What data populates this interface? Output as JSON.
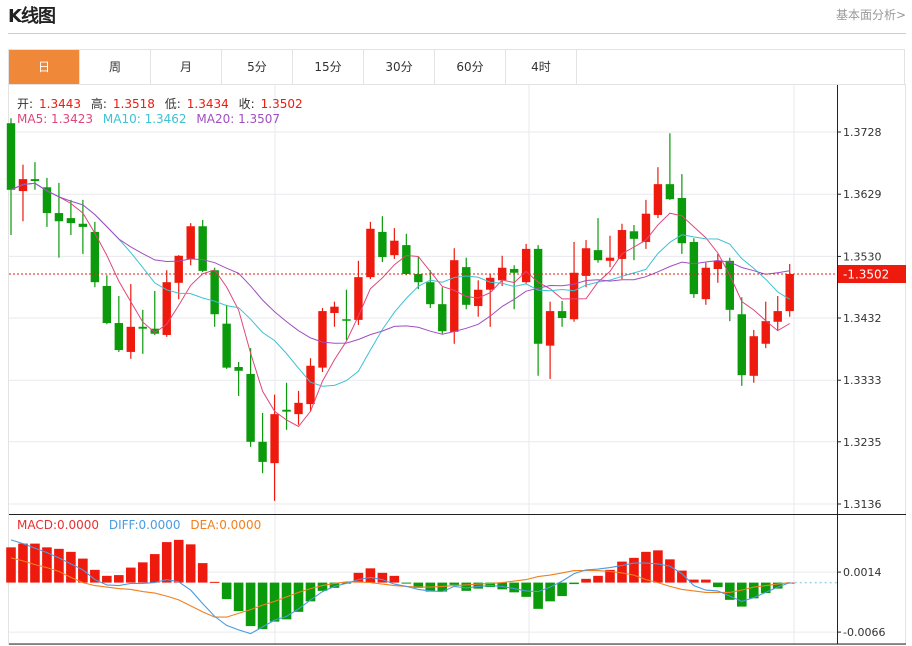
{
  "header": {
    "title": "K线图",
    "link": "基本面分析>"
  },
  "tabs": [
    {
      "label": "日",
      "active": true
    },
    {
      "label": "周"
    },
    {
      "label": "月"
    },
    {
      "label": "5分"
    },
    {
      "label": "15分"
    },
    {
      "label": "30分"
    },
    {
      "label": "60分"
    },
    {
      "label": "4时"
    }
  ],
  "ohlc_legend": {
    "open_label": "开:",
    "open": "1.3443",
    "high_label": "高:",
    "high": "1.3518",
    "low_label": "低:",
    "low": "1.3434",
    "close_label": "收:",
    "close": "1.3502"
  },
  "ma_legend": {
    "ma5": "MA5: 1.3423",
    "ma10": "MA10: 1.3462",
    "ma20": "MA20: 1.3507"
  },
  "macd_legend": {
    "macd": "MACD:0.0000",
    "diff": "DIFF:0.0000",
    "dea": "DEA:0.0000"
  },
  "colors": {
    "up": "#EE1A0E",
    "down": "#0B9A0B",
    "active_tab": "#F0883A",
    "ma5": "#E0467C",
    "ma10": "#3EC1D3",
    "ma20": "#A04FC0",
    "diff": "#4A9BE0",
    "dea": "#F08020",
    "last_price": "#EE1A0E"
  },
  "chart_data": [
    {
      "type": "candlestick",
      "y_ticks": [
        "1.3728",
        "1.3629",
        "1.3530",
        "1.3432",
        "1.3333",
        "1.3235",
        "1.3136"
      ],
      "ylim": [
        1.3136,
        1.3728
      ],
      "last_price": "1.3502",
      "ma_periods": [
        5,
        10,
        20
      ],
      "grid": true,
      "candles": [
        [
          1.3742,
          1.375,
          1.3564,
          1.3636
        ],
        [
          1.3634,
          1.3676,
          1.3586,
          1.3653
        ],
        [
          1.3653,
          1.368,
          1.3636,
          1.365
        ],
        [
          1.364,
          1.3655,
          1.3577,
          1.3599
        ],
        [
          1.3599,
          1.3647,
          1.3528,
          1.3586
        ],
        [
          1.3591,
          1.362,
          1.3564,
          1.3583
        ],
        [
          1.3582,
          1.362,
          1.3534,
          1.3577
        ],
        [
          1.3569,
          1.3585,
          1.3481,
          1.3489
        ],
        [
          1.3483,
          1.35,
          1.3422,
          1.3424
        ],
        [
          1.3424,
          1.3467,
          1.3378,
          1.3381
        ],
        [
          1.3378,
          1.3486,
          1.3367,
          1.3418
        ],
        [
          1.3418,
          1.3445,
          1.3375,
          1.3415
        ],
        [
          1.3415,
          1.3475,
          1.3405,
          1.3407
        ],
        [
          1.3405,
          1.3508,
          1.3402,
          1.3489
        ],
        [
          1.3488,
          1.3532,
          1.3462,
          1.3531
        ],
        [
          1.3526,
          1.3583,
          1.3516,
          1.3578
        ],
        [
          1.3578,
          1.3588,
          1.3505,
          1.3507
        ],
        [
          1.3508,
          1.3512,
          1.3418,
          1.3438
        ],
        [
          1.3423,
          1.3453,
          1.3351,
          1.3353
        ],
        [
          1.3354,
          1.3362,
          1.3308,
          1.3348
        ],
        [
          1.3343,
          1.3384,
          1.3227,
          1.3235
        ],
        [
          1.3235,
          1.3281,
          1.3185,
          1.3203
        ],
        [
          1.3201,
          1.331,
          1.3141,
          1.3279
        ],
        [
          1.3286,
          1.3329,
          1.3254,
          1.3283
        ],
        [
          1.3279,
          1.3316,
          1.3262,
          1.3297
        ],
        [
          1.3295,
          1.3368,
          1.3283,
          1.3356
        ],
        [
          1.3353,
          1.3448,
          1.3346,
          1.3443
        ],
        [
          1.344,
          1.3458,
          1.3418,
          1.345
        ],
        [
          1.343,
          1.3477,
          1.3397,
          1.3429
        ],
        [
          1.3429,
          1.3523,
          1.3421,
          1.3497
        ],
        [
          1.3497,
          1.3585,
          1.3494,
          1.3574
        ],
        [
          1.3569,
          1.3594,
          1.3521,
          1.3529
        ],
        [
          1.3532,
          1.3575,
          1.3526,
          1.3555
        ],
        [
          1.3548,
          1.3566,
          1.35,
          1.3502
        ],
        [
          1.3502,
          1.3529,
          1.3478,
          1.3489
        ],
        [
          1.3489,
          1.3508,
          1.3448,
          1.3454
        ],
        [
          1.3454,
          1.3481,
          1.3407,
          1.3411
        ],
        [
          1.341,
          1.3543,
          1.3391,
          1.3524
        ],
        [
          1.3513,
          1.3528,
          1.3446,
          1.3453
        ],
        [
          1.3451,
          1.3492,
          1.3434,
          1.3477
        ],
        [
          1.3477,
          1.3502,
          1.3418,
          1.3496
        ],
        [
          1.3492,
          1.3531,
          1.3483,
          1.3512
        ],
        [
          1.351,
          1.3516,
          1.3446,
          1.3504
        ],
        [
          1.3489,
          1.355,
          1.3487,
          1.3542
        ],
        [
          1.3542,
          1.3548,
          1.334,
          1.3391
        ],
        [
          1.3388,
          1.3458,
          1.3335,
          1.3443
        ],
        [
          1.3443,
          1.3459,
          1.3418,
          1.3432
        ],
        [
          1.343,
          1.3553,
          1.3426,
          1.3504
        ],
        [
          1.3499,
          1.3556,
          1.3481,
          1.3543
        ],
        [
          1.354,
          1.3591,
          1.352,
          1.3524
        ],
        [
          1.3523,
          1.3563,
          1.3513,
          1.3528
        ],
        [
          1.3526,
          1.3582,
          1.3494,
          1.3572
        ],
        [
          1.357,
          1.358,
          1.3524,
          1.3558
        ],
        [
          1.3553,
          1.362,
          1.3542,
          1.3598
        ],
        [
          1.3596,
          1.3672,
          1.3591,
          1.3645
        ],
        [
          1.3645,
          1.3726,
          1.362,
          1.3621
        ],
        [
          1.3623,
          1.3661,
          1.3534,
          1.3551
        ],
        [
          1.3553,
          1.3559,
          1.3464,
          1.347
        ],
        [
          1.3462,
          1.352,
          1.3453,
          1.3512
        ],
        [
          1.351,
          1.3534,
          1.3488,
          1.3523
        ],
        [
          1.3523,
          1.3528,
          1.3427,
          1.3445
        ],
        [
          1.3438,
          1.3465,
          1.3324,
          1.3341
        ],
        [
          1.334,
          1.3413,
          1.3329,
          1.3403
        ],
        [
          1.3391,
          1.3458,
          1.3384,
          1.3427
        ],
        [
          1.3426,
          1.3467,
          1.3413,
          1.3443
        ],
        [
          1.3443,
          1.3518,
          1.3434,
          1.3502
        ]
      ]
    },
    {
      "type": "macd",
      "y_ticks": [
        "0.0014",
        "-0.0066"
      ],
      "histogram": [
        0.0047,
        0.0052,
        0.0052,
        0.0047,
        0.0045,
        0.0041,
        0.0032,
        0.0017,
        0.0009,
        0.001,
        0.002,
        0.0027,
        0.0038,
        0.0054,
        0.0057,
        0.0051,
        0.0026,
        0.0001,
        -0.0022,
        -0.0038,
        -0.0058,
        -0.0062,
        -0.0052,
        -0.0049,
        -0.0039,
        -0.0025,
        -0.0011,
        -0.0007,
        -0.0001,
        0.0013,
        0.0019,
        0.0013,
        0.0009,
        -0.0001,
        -0.0007,
        -0.0012,
        -0.0012,
        -0.0003,
        -0.0011,
        -0.0008,
        -0.0006,
        -0.0009,
        -0.0013,
        -0.0019,
        -0.0035,
        -0.0025,
        -0.0018,
        -0.0002,
        0.0005,
        0.0009,
        0.0017,
        0.0028,
        0.0033,
        0.0041,
        0.0043,
        0.0031,
        0.0016,
        0.0004,
        0.0004,
        -0.0006,
        -0.0023,
        -0.0032,
        -0.0021,
        -0.0014,
        -0.0008,
        0.0
      ],
      "diff": [
        0.0057,
        0.0052,
        0.0046,
        0.004,
        0.0033,
        0.0025,
        0.0017,
        0.0004,
        -0.0003,
        -0.0004,
        -0.0001,
        -0.0001,
        0.0,
        0.0004,
        0.0001,
        -0.001,
        -0.0028,
        -0.0045,
        -0.0057,
        -0.0063,
        -0.0068,
        -0.0059,
        -0.005,
        -0.0045,
        -0.0035,
        -0.0023,
        -0.0012,
        -0.0005,
        -0.0001,
        0.0004,
        0.0007,
        0.0004,
        -0.0002,
        -0.0005,
        -0.0009,
        -0.0011,
        -0.0012,
        -0.0005,
        -0.0007,
        -0.0005,
        -0.0004,
        -0.0005,
        -0.0008,
        -0.0011,
        -0.0012,
        -0.0006,
        0.0002,
        0.0012,
        0.0017,
        0.0018,
        0.002,
        0.0023,
        0.0026,
        0.0026,
        0.0025,
        0.0022,
        0.0012,
        -0.0004,
        -0.001,
        -0.0011,
        -0.0018,
        -0.0025,
        -0.002,
        -0.0013,
        -0.0006,
        0.0
      ],
      "dea": [
        0.0033,
        0.0029,
        0.0024,
        0.002,
        0.0015,
        0.0007,
        0.0,
        -0.0004,
        -0.0006,
        -0.0008,
        -0.0009,
        -0.0012,
        -0.0014,
        -0.0018,
        -0.0023,
        -0.0031,
        -0.0039,
        -0.0046,
        -0.0046,
        -0.0041,
        -0.0036,
        -0.003,
        -0.0025,
        -0.0019,
        -0.0013,
        -0.0008,
        -0.0004,
        -0.0001,
        0.0001,
        0.0001,
        0.0,
        -0.0002,
        -0.0004,
        -0.0005,
        -0.0006,
        -0.0006,
        -0.0005,
        -0.0004,
        -0.0003,
        -0.0002,
        -0.0001,
        0.0,
        0.0002,
        0.0004,
        0.0008,
        0.001,
        0.0013,
        0.0016,
        0.0016,
        0.0016,
        0.0015,
        0.0013,
        0.001,
        0.0004,
        0.0,
        -0.0005,
        -0.0009,
        -0.0011,
        -0.0013,
        -0.0013,
        -0.0013,
        -0.001,
        -0.0006,
        -0.0004,
        -0.0002,
        0.0
      ]
    }
  ]
}
